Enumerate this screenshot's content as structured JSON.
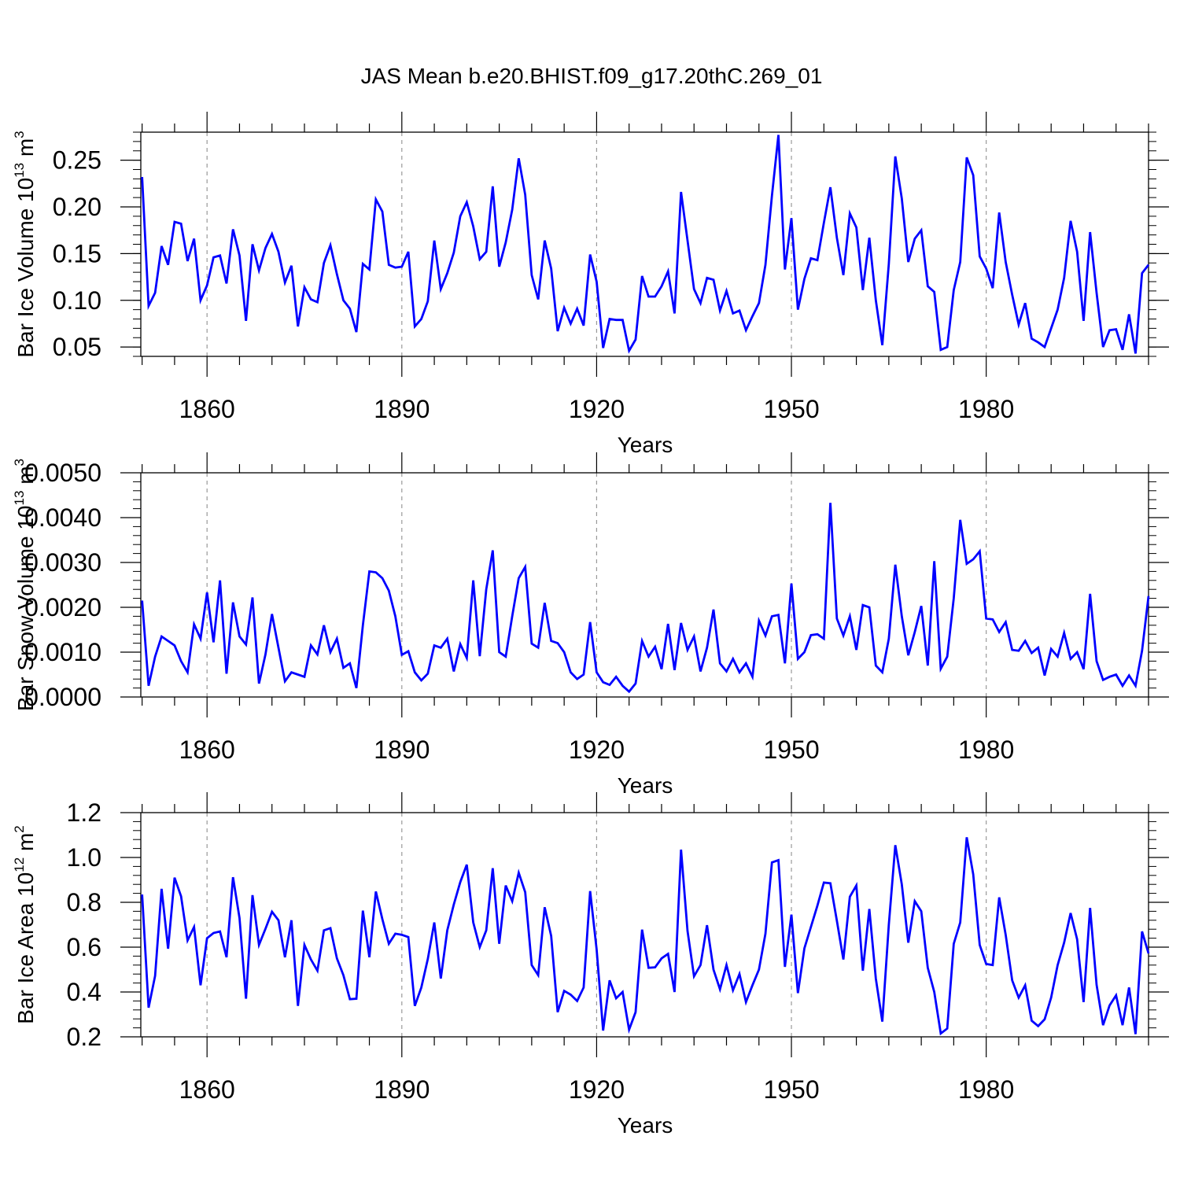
{
  "chart_data": {
    "title": "JAS Mean b.e20.BHIST.f09_g17.20thC.269_01",
    "type": "line",
    "line_color": "#0000ff",
    "x": [
      1850,
      1851,
      1852,
      1853,
      1854,
      1855,
      1856,
      1857,
      1858,
      1859,
      1860,
      1861,
      1862,
      1863,
      1864,
      1865,
      1866,
      1867,
      1868,
      1869,
      1870,
      1871,
      1872,
      1873,
      1874,
      1875,
      1876,
      1877,
      1878,
      1879,
      1880,
      1881,
      1882,
      1883,
      1884,
      1885,
      1886,
      1887,
      1888,
      1889,
      1890,
      1891,
      1892,
      1893,
      1894,
      1895,
      1896,
      1897,
      1898,
      1899,
      1900,
      1901,
      1902,
      1903,
      1904,
      1905,
      1906,
      1907,
      1908,
      1909,
      1910,
      1911,
      1912,
      1913,
      1914,
      1915,
      1916,
      1917,
      1918,
      1919,
      1920,
      1921,
      1922,
      1923,
      1924,
      1925,
      1926,
      1927,
      1928,
      1929,
      1930,
      1931,
      1932,
      1933,
      1934,
      1935,
      1936,
      1937,
      1938,
      1939,
      1940,
      1941,
      1942,
      1943,
      1944,
      1945,
      1946,
      1947,
      1948,
      1949,
      1950,
      1951,
      1952,
      1953,
      1954,
      1955,
      1956,
      1957,
      1958,
      1959,
      1960,
      1961,
      1962,
      1963,
      1964,
      1965,
      1966,
      1967,
      1968,
      1969,
      1970,
      1971,
      1972,
      1973,
      1974,
      1975,
      1976,
      1977,
      1978,
      1979,
      1980,
      1981,
      1982,
      1983,
      1984,
      1985,
      1986,
      1987,
      1988,
      1989,
      1990,
      1991,
      1992,
      1993,
      1994,
      1995,
      1996,
      1997,
      1998,
      1999,
      2000,
      2001,
      2002,
      2003,
      2004,
      2005
    ],
    "xlim": [
      1849.8,
      2005
    ],
    "xticks": [
      1860,
      1890,
      1920,
      1950,
      1980
    ],
    "xtick_labels": [
      "1860",
      "1890",
      "1920",
      "1950",
      "1980"
    ],
    "panels": [
      {
        "ylabel": "Bar Ice Volume 10",
        "ylabel_exp": "13",
        "ylabel_unit": " m",
        "ylabel_unit_exp": "3",
        "xlabel": "Years",
        "ylim": [
          0.04,
          0.28
        ],
        "yticks": [
          0.05,
          0.1,
          0.15,
          0.2,
          0.25
        ],
        "ytick_labels": [
          "0.05",
          "0.10",
          "0.15",
          "0.20",
          "0.25"
        ],
        "values": [
          0.232,
          0.094,
          0.108,
          0.158,
          0.138,
          0.184,
          0.182,
          0.142,
          0.166,
          0.1,
          0.116,
          0.146,
          0.148,
          0.118,
          0.176,
          0.148,
          0.078,
          0.16,
          0.132,
          0.156,
          0.171,
          0.152,
          0.119,
          0.137,
          0.072,
          0.114,
          0.101,
          0.098,
          0.14,
          0.159,
          0.128,
          0.1,
          0.091,
          0.066,
          0.139,
          0.133,
          0.208,
          0.195,
          0.138,
          0.135,
          0.136,
          0.152,
          0.072,
          0.08,
          0.099,
          0.164,
          0.112,
          0.129,
          0.151,
          0.19,
          0.205,
          0.179,
          0.144,
          0.152,
          0.222,
          0.136,
          0.162,
          0.197,
          0.252,
          0.213,
          0.127,
          0.101,
          0.164,
          0.134,
          0.067,
          0.092,
          0.075,
          0.091,
          0.073,
          0.149,
          0.12,
          0.049,
          0.08,
          0.079,
          0.079,
          0.046,
          0.058,
          0.126,
          0.104,
          0.104,
          0.115,
          0.131,
          0.086,
          0.216,
          0.164,
          0.112,
          0.097,
          0.124,
          0.122,
          0.089,
          0.11,
          0.086,
          0.089,
          0.068,
          0.083,
          0.097,
          0.138,
          0.212,
          0.277,
          0.133,
          0.188,
          0.09,
          0.123,
          0.145,
          0.143,
          0.183,
          0.221,
          0.167,
          0.127,
          0.193,
          0.178,
          0.111,
          0.167,
          0.1,
          0.052,
          0.139,
          0.254,
          0.209,
          0.141,
          0.166,
          0.175,
          0.115,
          0.109,
          0.047,
          0.05,
          0.111,
          0.141,
          0.253,
          0.234,
          0.147,
          0.134,
          0.113,
          0.194,
          0.141,
          0.106,
          0.074,
          0.097,
          0.059,
          0.055,
          0.05,
          0.07,
          0.09,
          0.124,
          0.185,
          0.152,
          0.078,
          0.173,
          0.108,
          0.05,
          0.068,
          0.069,
          0.047,
          0.085,
          0.043,
          0.129,
          0.138
        ]
      },
      {
        "ylabel": "Bar Snow Volume 10",
        "ylabel_exp": "13",
        "ylabel_unit": " m",
        "ylabel_unit_exp": "3",
        "xlabel": "Years",
        "ylim": [
          0.0,
          0.005
        ],
        "yticks": [
          0.0,
          0.001,
          0.002,
          0.003,
          0.004,
          0.005
        ],
        "ytick_labels": [
          "0.0000",
          "0.0010",
          "0.0020",
          "0.0030",
          "0.0040",
          "0.0050"
        ],
        "values": [
          0.00215,
          0.00025,
          0.0009,
          0.00135,
          0.00125,
          0.00115,
          0.0008,
          0.00055,
          0.00162,
          0.0013,
          0.00233,
          0.00122,
          0.0026,
          0.00052,
          0.00211,
          0.00135,
          0.00117,
          0.00222,
          0.0003,
          0.00095,
          0.00185,
          0.0011,
          0.00035,
          0.00055,
          0.0005,
          0.00045,
          0.00115,
          0.00095,
          0.0016,
          0.001,
          0.0013,
          0.00065,
          0.00075,
          0.0002,
          0.0016,
          0.0028,
          0.00278,
          0.00265,
          0.00237,
          0.0018,
          0.00094,
          0.00102,
          0.00055,
          0.00037,
          0.00052,
          0.00115,
          0.0011,
          0.0013,
          0.00057,
          0.00118,
          0.00087,
          0.0026,
          0.00091,
          0.0024,
          0.00327,
          0.001,
          0.0009,
          0.0018,
          0.00265,
          0.0029,
          0.00119,
          0.0011,
          0.0021,
          0.00125,
          0.0012,
          0.001,
          0.00055,
          0.0004,
          0.0005,
          0.00167,
          0.00055,
          0.00033,
          0.00027,
          0.00045,
          0.00025,
          0.00012,
          0.0003,
          0.00125,
          0.0009,
          0.00112,
          0.00062,
          0.00163,
          0.0006,
          0.00165,
          0.00105,
          0.00135,
          0.00057,
          0.0011,
          0.00195,
          0.00075,
          0.00057,
          0.00085,
          0.00055,
          0.00075,
          0.00045,
          0.0017,
          0.00137,
          0.0018,
          0.00183,
          0.00075,
          0.00253,
          0.00085,
          0.001,
          0.00138,
          0.0014,
          0.0013,
          0.00433,
          0.00175,
          0.00137,
          0.0018,
          0.00105,
          0.00205,
          0.002,
          0.0007,
          0.00055,
          0.0013,
          0.00295,
          0.0018,
          0.00093,
          0.00145,
          0.00203,
          0.0007,
          0.00303,
          0.00063,
          0.0009,
          0.0022,
          0.00395,
          0.00297,
          0.00307,
          0.00325,
          0.00175,
          0.00173,
          0.00145,
          0.00167,
          0.00105,
          0.00103,
          0.00125,
          0.00098,
          0.0011,
          0.00048,
          0.00107,
          0.0009,
          0.00143,
          0.00085,
          0.001,
          0.00062,
          0.0023,
          0.0008,
          0.00038,
          0.00045,
          0.0005,
          0.00025,
          0.00048,
          0.00025,
          0.00103,
          0.00225
        ]
      },
      {
        "ylabel": "Bar Ice Area 10",
        "ylabel_exp": "12",
        "ylabel_unit": " m",
        "ylabel_unit_exp": "2",
        "xlabel": "Years",
        "ylim": [
          0.2,
          1.2
        ],
        "yticks": [
          0.2,
          0.4,
          0.6,
          0.8,
          1.0,
          1.2
        ],
        "ytick_labels": [
          "0.2",
          "0.4",
          "0.6",
          "0.8",
          "1.0",
          "1.2"
        ],
        "values": [
          0.835,
          0.33,
          0.472,
          0.86,
          0.593,
          0.91,
          0.827,
          0.63,
          0.69,
          0.43,
          0.64,
          0.663,
          0.67,
          0.555,
          0.912,
          0.73,
          0.37,
          0.832,
          0.61,
          0.682,
          0.758,
          0.72,
          0.555,
          0.72,
          0.338,
          0.61,
          0.545,
          0.495,
          0.675,
          0.685,
          0.55,
          0.475,
          0.368,
          0.37,
          0.763,
          0.555,
          0.848,
          0.725,
          0.615,
          0.66,
          0.655,
          0.645,
          0.338,
          0.42,
          0.547,
          0.71,
          0.46,
          0.675,
          0.79,
          0.89,
          0.968,
          0.71,
          0.6,
          0.675,
          0.952,
          0.615,
          0.875,
          0.805,
          0.932,
          0.845,
          0.52,
          0.475,
          0.778,
          0.65,
          0.31,
          0.405,
          0.388,
          0.36,
          0.42,
          0.85,
          0.59,
          0.228,
          0.452,
          0.372,
          0.4,
          0.232,
          0.31,
          0.678,
          0.508,
          0.51,
          0.55,
          0.57,
          0.4,
          1.035,
          0.672,
          0.47,
          0.52,
          0.698,
          0.5,
          0.412,
          0.52,
          0.408,
          0.48,
          0.355,
          0.43,
          0.5,
          0.66,
          0.978,
          0.988,
          0.512,
          0.745,
          0.395,
          0.595,
          0.69,
          0.785,
          0.888,
          0.885,
          0.718,
          0.545,
          0.825,
          0.875,
          0.495,
          0.77,
          0.46,
          0.268,
          0.7,
          1.055,
          0.88,
          0.62,
          0.805,
          0.76,
          0.508,
          0.4,
          0.215,
          0.237,
          0.615,
          0.71,
          1.09,
          0.925,
          0.61,
          0.525,
          0.52,
          0.822,
          0.655,
          0.452,
          0.375,
          0.43,
          0.272,
          0.248,
          0.278,
          0.375,
          0.52,
          0.62,
          0.752,
          0.635,
          0.355,
          0.775,
          0.432,
          0.252,
          0.34,
          0.385,
          0.252,
          0.42,
          0.212,
          0.67,
          0.572
        ]
      }
    ]
  }
}
